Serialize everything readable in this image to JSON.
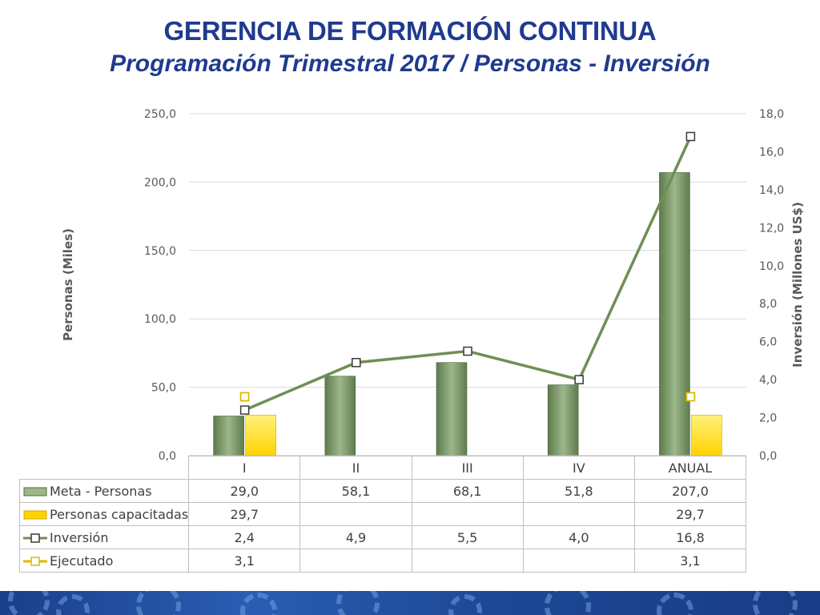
{
  "title": "GERENCIA DE FORMACIÓN CONTINUA",
  "subtitle": "Programación Trimestral 2017 / Personas - Inversión",
  "colors": {
    "meta_bar": "#9cb88a",
    "meta_bar_dark": "#5f7a4c",
    "capacitadas_bar": "#ffd200",
    "inversion_line": "#6f8f55",
    "ejecutado_marker": "#e0b800",
    "title": "#1f3a8f",
    "footer": "#1f4a99"
  },
  "chart_data": {
    "type": "bar",
    "categories": [
      "I",
      "II",
      "III",
      "IV",
      "ANUAL"
    ],
    "y_left": {
      "label": "Personas (Miles)",
      "lim": [
        0,
        250
      ],
      "ticks": [
        "0,0",
        "50,0",
        "100,0",
        "150,0",
        "200,0",
        "250,0"
      ]
    },
    "y_right": {
      "label": "Inversión (Millones US$)",
      "lim": [
        0,
        18
      ],
      "ticks": [
        "0,0",
        "2,0",
        "4,0",
        "6,0",
        "8,0",
        "10,0",
        "12,0",
        "14,0",
        "16,0",
        "18,0"
      ]
    },
    "grid": true,
    "series": [
      {
        "name": "Meta - Personas",
        "kind": "bar",
        "axis": "left",
        "values": [
          29.0,
          58.1,
          68.1,
          51.8,
          207.0
        ],
        "labels": [
          "29,0",
          "58,1",
          "68,1",
          "51,8",
          "207,0"
        ]
      },
      {
        "name": "Personas capacitadas",
        "kind": "bar",
        "axis": "left",
        "values": [
          29.7,
          null,
          null,
          null,
          29.7
        ],
        "labels": [
          "29,7",
          "",
          "",
          "",
          "29,7"
        ]
      },
      {
        "name": "Inversión",
        "kind": "line",
        "axis": "right",
        "values": [
          2.4,
          4.9,
          5.5,
          4.0,
          16.8
        ],
        "labels": [
          "2,4",
          "4,9",
          "5,5",
          "4,0",
          "16,8"
        ]
      },
      {
        "name": "Ejecutado",
        "kind": "marker",
        "axis": "right",
        "values": [
          3.1,
          null,
          null,
          null,
          3.1
        ],
        "labels": [
          "3,1",
          "",
          "",
          "",
          "3,1"
        ]
      }
    ]
  }
}
